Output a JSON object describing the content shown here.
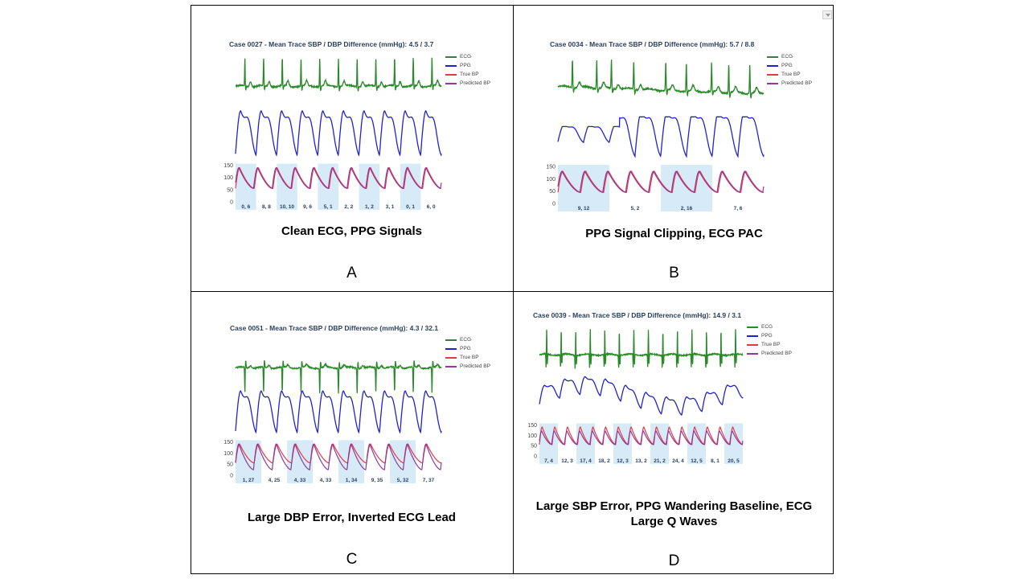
{
  "colors": {
    "ecg": "#2a8a2a",
    "ppg": "#2222cc",
    "true_bp": "#e63946",
    "predicted_bp": "#8e3a9e",
    "band": "#d6ebf7",
    "title": "#2a3f5f"
  },
  "legend": [
    "ECG",
    "PPG",
    "True BP",
    "Predicted BP"
  ],
  "panels": [
    {
      "letter": "A",
      "title": "Case 0027 - Mean Trace SBP / DBP Difference (mmHg): 4.5 / 3.7",
      "caption": "Clean ECG, PPG Signals",
      "ecg_style": "normal",
      "ppg_style": "regular",
      "bp_y_ticks": [
        "150",
        "100",
        "50",
        "0"
      ],
      "beat_diffs": [
        "0, 6",
        "8, 8",
        "10, 10",
        "9, 6",
        "5, 1",
        "2, 2",
        "1, 2",
        "3, 1",
        "0, 1",
        "6, 0"
      ]
    },
    {
      "letter": "B",
      "title": "Case 0034 - Mean Trace SBP / DBP Difference (mmHg): 5.7 / 8.8",
      "caption": "PPG Signal Clipping, ECG PAC",
      "ecg_style": "irregular",
      "ppg_style": "clipped",
      "bp_y_ticks": [
        "150",
        "100",
        "50",
        "0"
      ],
      "beat_diffs": [
        "9, 12",
        "5, 2",
        "2, 16",
        "7, 6"
      ]
    },
    {
      "letter": "C",
      "title": "Case 0051 - Mean Trace SBP / DBP Difference (mmHg): 4.3 / 32.1",
      "caption": "Large DBP Error, Inverted ECG Lead",
      "ecg_style": "inverted",
      "ppg_style": "regular",
      "bp_y_ticks": [
        "150",
        "100",
        "50",
        "0"
      ],
      "beat_diffs": [
        "1, 27",
        "4, 25",
        "4, 33",
        "4, 33",
        "1, 34",
        "9, 35",
        "5, 32",
        "7, 37"
      ]
    },
    {
      "letter": "D",
      "title": "Case 0039 - Mean Trace SBP / DBP Difference (mmHg): 14.9 / 3.1",
      "caption": "Large SBP Error, PPG Wandering Baseline, ECG Large Q Waves",
      "ecg_style": "qwave",
      "ppg_style": "wandering",
      "bp_y_ticks": [
        "150",
        "100",
        "50",
        "0"
      ],
      "beat_diffs": [
        "7, 4",
        "12, 3",
        "17, 4",
        "18, 2",
        "12, 3",
        "13, 2",
        "21, 2",
        "24, 4",
        "12, 5",
        "8, 1",
        "20, 5"
      ]
    }
  ]
}
